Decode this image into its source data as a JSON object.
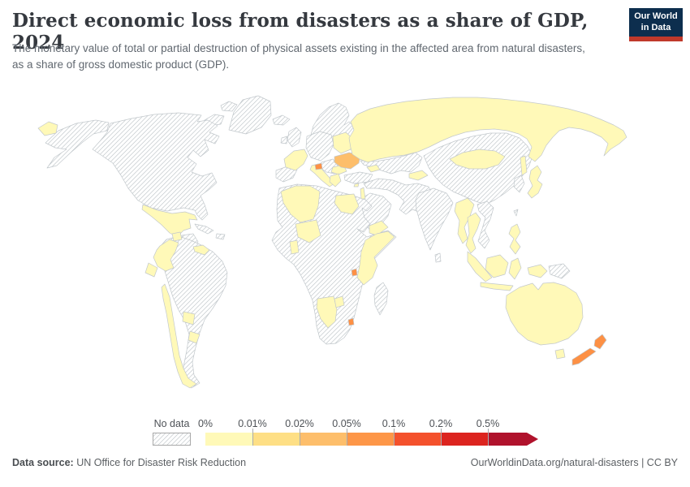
{
  "header": {
    "title": "Direct economic loss from disasters as a share of GDP, 2024",
    "subtitle": "The monetary value of total or partial destruction of physical assets existing in the affected area from natural disasters, as a share of gross domestic product (GDP).",
    "logo": {
      "line1": "Our World",
      "line2": "in Data",
      "bg_color": "#0d2e4e",
      "stripe_color": "#c0392b"
    }
  },
  "legend": {
    "no_data_label": "No data",
    "ticks": [
      "0%",
      "0.01%",
      "0.02%",
      "0.05%",
      "0.1%",
      "0.2%",
      "0.5%"
    ],
    "colors": [
      "#fff9b8",
      "#fedf85",
      "#fdbe6b",
      "#fd9648",
      "#f4512c",
      "#dc241f",
      "#b0122c"
    ]
  },
  "footer": {
    "source_label": "Data source:",
    "source_text": " UN Office for Disaster Risk Reduction",
    "attribution": "OurWorldinData.org/natural-disasters | CC BY"
  },
  "chart_data": {
    "type": "choropleth",
    "title": "Direct economic loss from disasters as a share of GDP, 2024",
    "unit": "% of GDP",
    "bins": [
      "0%-0.01%",
      "0.01%-0.02%",
      "0.02%-0.05%",
      "0.05%-0.1%",
      "0.1%-0.2%",
      "0.2%-0.5%",
      ">0.5%"
    ],
    "bands": {
      "no_data": {
        "label": "No data",
        "fill": "hatch"
      },
      "b0": {
        "label": "0%-0.01%",
        "fill": "#fff9b8"
      },
      "b2": {
        "label": "0.02%-0.05%",
        "fill": "#fdbe6b"
      },
      "b3": {
        "label": "0.05%-0.1%",
        "fill": "#fd9044"
      }
    },
    "regions": [
      {
        "id": "greenland",
        "band": "no_data"
      },
      {
        "id": "arctic-islands",
        "band": "no_data"
      },
      {
        "id": "alaska",
        "band": "no_data"
      },
      {
        "id": "canada-usa",
        "band": "no_data"
      },
      {
        "id": "cuba",
        "band": "no_data"
      },
      {
        "id": "hispaniola",
        "band": "no_data"
      },
      {
        "id": "honduras-nicaragua",
        "band": "no_data"
      },
      {
        "id": "south-america",
        "band": "no_data"
      },
      {
        "id": "iceland",
        "band": "no_data"
      },
      {
        "id": "uk",
        "band": "no_data"
      },
      {
        "id": "ireland",
        "band": "no_data"
      },
      {
        "id": "scandinavia",
        "band": "no_data"
      },
      {
        "id": "iberia",
        "band": "no_data"
      },
      {
        "id": "central-europe",
        "band": "no_data"
      },
      {
        "id": "balkans",
        "band": "no_data"
      },
      {
        "id": "turkey",
        "band": "no_data"
      },
      {
        "id": "kazakhstan",
        "band": "no_data"
      },
      {
        "id": "middle-east",
        "band": "no_data"
      },
      {
        "id": "arabia",
        "band": "no_data"
      },
      {
        "id": "india",
        "band": "no_data"
      },
      {
        "id": "sri-lanka",
        "band": "no_data"
      },
      {
        "id": "china",
        "band": "no_data"
      },
      {
        "id": "korea",
        "band": "no_data"
      },
      {
        "id": "taiwan",
        "band": "no_data"
      },
      {
        "id": "laos-vietnam",
        "band": "no_data"
      },
      {
        "id": "papua-new-guinea",
        "band": "no_data"
      },
      {
        "id": "africa",
        "band": "no_data"
      },
      {
        "id": "madagascar",
        "band": "no_data"
      },
      {
        "id": "chukotka",
        "band": "b0"
      },
      {
        "id": "mexico",
        "band": "b0"
      },
      {
        "id": "guatemala",
        "band": "b0"
      },
      {
        "id": "costa-rica-panama",
        "band": "b0"
      },
      {
        "id": "colombia",
        "band": "b0"
      },
      {
        "id": "ecuador",
        "band": "b0"
      },
      {
        "id": "chile",
        "band": "b0"
      },
      {
        "id": "paraguay",
        "band": "b0"
      },
      {
        "id": "uruguay",
        "band": "b0"
      },
      {
        "id": "france",
        "band": "b0"
      },
      {
        "id": "italy",
        "band": "b0"
      },
      {
        "id": "romania",
        "band": "b0"
      },
      {
        "id": "greece",
        "band": "b0"
      },
      {
        "id": "belarus",
        "band": "b0"
      },
      {
        "id": "georgia",
        "band": "b0"
      },
      {
        "id": "cyprus",
        "band": "b0"
      },
      {
        "id": "israel",
        "band": "b0"
      },
      {
        "id": "russia",
        "band": "b0"
      },
      {
        "id": "sakhalin",
        "band": "b0"
      },
      {
        "id": "kyrgyzstan",
        "band": "b0"
      },
      {
        "id": "yemen",
        "band": "b0"
      },
      {
        "id": "mongolia",
        "band": "b0"
      },
      {
        "id": "japan",
        "band": "b0"
      },
      {
        "id": "myanmar",
        "band": "b0"
      },
      {
        "id": "thailand",
        "band": "b0"
      },
      {
        "id": "sumatra-malaysia",
        "band": "b0"
      },
      {
        "id": "java",
        "band": "b0"
      },
      {
        "id": "borneo",
        "band": "b0"
      },
      {
        "id": "sulawesi",
        "band": "b0"
      },
      {
        "id": "west-papua",
        "band": "b0"
      },
      {
        "id": "philippines",
        "band": "b0"
      },
      {
        "id": "morocco-algeria",
        "band": "b0"
      },
      {
        "id": "niger",
        "band": "b0"
      },
      {
        "id": "egypt",
        "band": "b0"
      },
      {
        "id": "ghana",
        "band": "b0"
      },
      {
        "id": "horn-of-africa",
        "band": "b0"
      },
      {
        "id": "namibia",
        "band": "b0"
      },
      {
        "id": "zimbabwe",
        "band": "b0"
      },
      {
        "id": "australia",
        "band": "b0"
      },
      {
        "id": "tasmania",
        "band": "b0"
      },
      {
        "id": "ukraine",
        "band": "b2"
      },
      {
        "id": "slovenia",
        "band": "b3"
      },
      {
        "id": "burundi",
        "band": "b3"
      },
      {
        "id": "eswatini",
        "band": "b3"
      },
      {
        "id": "new-zealand-north",
        "band": "b3"
      },
      {
        "id": "new-zealand-south",
        "band": "b3"
      }
    ]
  }
}
